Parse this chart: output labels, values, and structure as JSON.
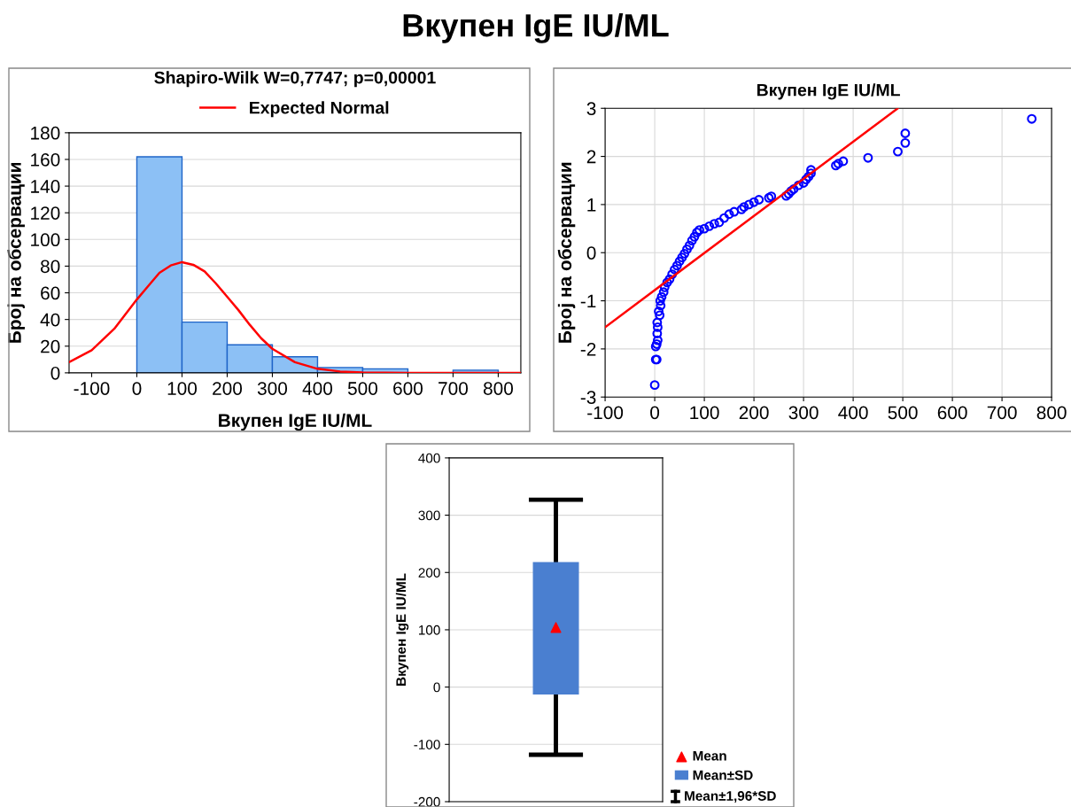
{
  "chart_data": [
    {
      "type": "other",
      "title": "Вкупен IgE IU/ML"
    },
    {
      "type": "histogram",
      "title": "Shapiro-Wilk W=0,7747; p=0,00001",
      "xlabel": "Вкупен IgE IU/ML",
      "ylabel": "Број на обсервации",
      "bins": [
        0,
        100,
        200,
        300,
        400,
        500,
        600,
        700,
        800
      ],
      "series": [
        {
          "type": "histogram",
          "color": "#8cc0f5",
          "values": [
            162,
            38,
            21,
            12,
            4,
            3,
            0,
            2
          ]
        },
        {
          "type": "line",
          "name": "Expected Normal",
          "color": "#ff0000",
          "x": [
            -150,
            -100,
            -50,
            0,
            25,
            50,
            75,
            100,
            125,
            150,
            175,
            200,
            225,
            250,
            275,
            300,
            350,
            400,
            450,
            500,
            600,
            700,
            800,
            850
          ],
          "values": [
            8,
            17,
            33,
            55,
            65,
            75,
            80.5,
            83,
            81,
            76,
            67,
            57,
            47,
            36,
            26,
            18,
            8,
            3,
            1,
            0.3,
            0,
            0,
            0,
            0
          ]
        }
      ],
      "xlim": [
        -150,
        850
      ],
      "xticks": [
        -100,
        0,
        100,
        200,
        300,
        400,
        500,
        600,
        700,
        800
      ],
      "ylim": [
        0,
        180
      ],
      "yticks": [
        0,
        20,
        40,
        60,
        80,
        100,
        120,
        140,
        160,
        180
      ],
      "grid": "y",
      "legend": "top",
      "line_style": "solid"
    },
    {
      "type": "scatter",
      "title": "Вкупен IgE IU/ML",
      "ylabel": "Број на обсервации",
      "series": [
        {
          "type": "scatter",
          "color": "#0000ff",
          "marker": "circle",
          "x": [
            0,
            2,
            4,
            2,
            4,
            6,
            5,
            6,
            5,
            10,
            8,
            12,
            11,
            14,
            18,
            20,
            25,
            30,
            35,
            40,
            45,
            50,
            55,
            60,
            65,
            70,
            75,
            80,
            85,
            90,
            100,
            110,
            120,
            130,
            140,
            150,
            160,
            175,
            180,
            190,
            200,
            210,
            230,
            235,
            265,
            270,
            275,
            280,
            290,
            300,
            305,
            310,
            315,
            315,
            365,
            370,
            380,
            430,
            490,
            505,
            505,
            760
          ],
          "values": [
            -2.75,
            -2.22,
            -2.22,
            -1.95,
            -1.9,
            -1.82,
            -1.68,
            -1.55,
            -1.45,
            -1.3,
            -1.22,
            -1.1,
            -1.0,
            -0.92,
            -0.82,
            -0.72,
            -0.62,
            -0.55,
            -0.45,
            -0.35,
            -0.27,
            -0.18,
            -0.1,
            -0.02,
            0.07,
            0.15,
            0.25,
            0.33,
            0.42,
            0.47,
            0.5,
            0.55,
            0.6,
            0.63,
            0.72,
            0.8,
            0.85,
            0.9,
            0.95,
            1.0,
            1.05,
            1.1,
            1.14,
            1.17,
            1.18,
            1.22,
            1.28,
            1.32,
            1.4,
            1.45,
            1.52,
            1.58,
            1.65,
            1.72,
            1.81,
            1.85,
            1.9,
            1.97,
            2.1,
            2.28,
            2.48,
            2.78
          ]
        },
        {
          "type": "line",
          "color": "#ff0000",
          "line_style": "solid",
          "x": [
            -100,
            490
          ],
          "values": [
            -1.55,
            3.0
          ]
        }
      ],
      "xlim": [
        -100,
        800
      ],
      "xticks": [
        -100,
        0,
        100,
        200,
        300,
        400,
        500,
        600,
        700,
        800
      ],
      "ylim": [
        -3,
        3
      ],
      "yticks": [
        -3,
        -2,
        -1,
        0,
        1,
        2,
        3
      ],
      "grid": true
    },
    {
      "type": "box",
      "ylabel": "Вкупен IgE IU/ML",
      "categories": [
        null
      ],
      "annotations": [
        "Mean±1,96*SD"
      ],
      "series": [
        {
          "type": "bar",
          "name": "Mean±SD",
          "color": "#4a7fd0",
          "values": [
            229
          ],
          "base": [
            -12
          ]
        },
        {
          "type": "scatter",
          "name": "Mean",
          "color": "#ff0000",
          "marker": "triangle",
          "values": [
            104
          ],
          "errors": [
            [
              -118,
              327
            ]
          ]
        }
      ],
      "ylim": [
        -200,
        400
      ],
      "yticks": [
        -200,
        -100,
        0,
        100,
        200,
        300,
        400
      ],
      "grid": "y",
      "legend": "bottom right",
      "tick_labels": "y"
    }
  ]
}
